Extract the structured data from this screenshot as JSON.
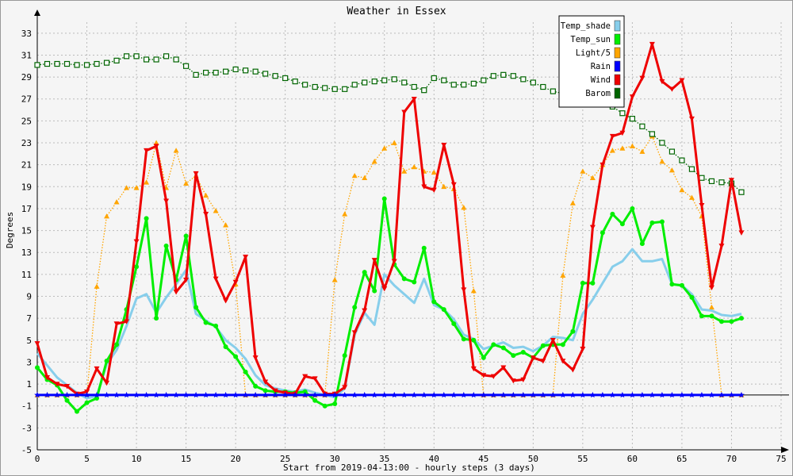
{
  "chart_data": {
    "type": "line",
    "title": "Weather in Essex",
    "xlabel": "Start from 2019-04-13:00 - hourly steps (3 days)",
    "ylabel": "Degrees",
    "xlim": [
      0,
      75
    ],
    "ylim": [
      -5,
      34
    ],
    "xticks": [
      0,
      5,
      10,
      15,
      20,
      25,
      30,
      35,
      40,
      45,
      50,
      55,
      60,
      65,
      70,
      75
    ],
    "yticks": [
      -5,
      -3,
      -1,
      1,
      3,
      5,
      7,
      9,
      11,
      13,
      15,
      17,
      19,
      21,
      23,
      25,
      27,
      29,
      31,
      33
    ],
    "grid": true,
    "legend_position": "top-right",
    "x": [
      0,
      1,
      2,
      3,
      4,
      5,
      6,
      7,
      8,
      9,
      10,
      11,
      12,
      13,
      14,
      15,
      16,
      17,
      18,
      19,
      20,
      21,
      22,
      23,
      24,
      25,
      26,
      27,
      28,
      29,
      30,
      31,
      32,
      33,
      34,
      35,
      36,
      37,
      38,
      39,
      40,
      41,
      42,
      43,
      44,
      45,
      46,
      47,
      48,
      49,
      50,
      51,
      52,
      53,
      54,
      55,
      56,
      57,
      58,
      59,
      60,
      61,
      62,
      63,
      64,
      65,
      66,
      67,
      68,
      69,
      70,
      71
    ],
    "series": [
      {
        "name": "Temp_shade",
        "color": "#87ceeb",
        "style": "solid",
        "marker": "none",
        "values": [
          3.8,
          2.7,
          1.6,
          0.9,
          0.2,
          -0.3,
          -0.1,
          2.8,
          4.1,
          6.3,
          8.8,
          9.2,
          7.5,
          8.9,
          10.1,
          11.4,
          7.4,
          6.8,
          6.2,
          5.0,
          4.3,
          3.3,
          1.8,
          0.9,
          0.6,
          0.4,
          0.3,
          0.5,
          0.2,
          0.0,
          -0.2,
          0.6,
          5.5,
          7.5,
          6.4,
          11.0,
          10.0,
          9.2,
          8.4,
          10.6,
          8.2,
          7.8,
          6.9,
          5.5,
          5.1,
          4.2,
          4.5,
          4.8,
          4.3,
          4.4,
          4.0,
          4.5,
          5.3,
          5.2,
          5.0,
          7.4,
          8.7,
          10.2,
          11.7,
          12.2,
          13.3,
          12.2,
          12.2,
          12.4,
          10.1,
          10.0,
          9.2,
          7.8,
          7.7,
          7.3,
          7.2,
          7.4
        ]
      },
      {
        "name": "Temp_sun",
        "color": "#00ee00",
        "style": "solid",
        "marker": "circle",
        "values": [
          2.5,
          1.4,
          0.9,
          -0.5,
          -1.5,
          -0.7,
          -0.3,
          3.1,
          4.6,
          7.8,
          11.7,
          16.1,
          7.0,
          13.6,
          10.5,
          14.5,
          8.0,
          6.6,
          6.3,
          4.4,
          3.5,
          2.1,
          0.8,
          0.4,
          0.3,
          0.3,
          0.2,
          0.3,
          -0.5,
          -1.0,
          -0.8,
          3.6,
          8.0,
          11.2,
          9.5,
          17.9,
          11.9,
          10.6,
          10.3,
          13.4,
          8.5,
          7.8,
          6.5,
          5.1,
          5.0,
          3.4,
          4.6,
          4.3,
          3.6,
          3.9,
          3.4,
          4.5,
          4.6,
          4.6,
          5.8,
          10.2,
          10.2,
          14.8,
          16.5,
          15.6,
          17.0,
          13.8,
          15.7,
          15.8,
          10.1,
          10.0,
          8.9,
          7.2,
          7.2,
          6.7,
          6.7,
          7.0
        ]
      },
      {
        "name": "Light/5",
        "color": "#ffa500",
        "style": "dotted",
        "marker": "triangle-up",
        "values": [
          0,
          0,
          0,
          0,
          0,
          0,
          9.9,
          16.3,
          17.6,
          18.9,
          18.9,
          19.4,
          23.0,
          18.9,
          22.3,
          19.3,
          20.0,
          18.2,
          16.8,
          15.5,
          10.1,
          0,
          0,
          0,
          0,
          0,
          0,
          0,
          0,
          0,
          10.5,
          16.5,
          20.0,
          19.8,
          21.3,
          22.5,
          23.0,
          20.4,
          20.8,
          20.4,
          20.3,
          19.0,
          18.8,
          17.1,
          9.5,
          0,
          0,
          0,
          0,
          0,
          0,
          0,
          0,
          10.9,
          17.5,
          20.4,
          19.8,
          21.0,
          22.3,
          22.5,
          22.7,
          22.2,
          23.6,
          21.3,
          20.5,
          18.7,
          18.0,
          16.3,
          8.0,
          0,
          0,
          0
        ]
      },
      {
        "name": "Rain",
        "color": "#0000ff",
        "style": "solid",
        "marker": "star",
        "values": [
          0,
          0,
          0,
          0,
          0,
          0,
          0,
          0,
          0,
          0,
          0,
          0,
          0,
          0,
          0,
          0,
          0,
          0,
          0,
          0,
          0,
          0,
          0,
          0,
          0,
          0,
          0,
          0,
          0,
          0,
          0,
          0,
          0,
          0,
          0,
          0,
          0,
          0,
          0,
          0,
          0,
          0,
          0,
          0,
          0,
          0,
          0,
          0,
          0,
          0,
          0,
          0,
          0,
          0,
          0,
          0,
          0,
          0,
          0,
          0,
          0,
          0,
          0,
          0,
          0,
          0,
          0,
          0,
          0,
          0,
          0,
          0
        ]
      },
      {
        "name": "Wind",
        "color": "#ee0000",
        "style": "solid",
        "marker": "triangle-down",
        "values": [
          4.7,
          1.6,
          1.0,
          0.8,
          0.1,
          0.3,
          2.4,
          1.1,
          6.5,
          6.7,
          14.0,
          22.3,
          22.7,
          17.7,
          9.4,
          10.5,
          20.2,
          16.5,
          10.6,
          8.6,
          10.3,
          12.6,
          3.4,
          1.2,
          0.4,
          0.2,
          0.1,
          1.7,
          1.5,
          0.1,
          0.1,
          0.7,
          5.7,
          7.7,
          12.3,
          9.7,
          12.2,
          25.8,
          27.0,
          19.0,
          18.7,
          22.8,
          19.2,
          9.6,
          2.4,
          1.8,
          1.7,
          2.5,
          1.3,
          1.4,
          3.4,
          3.1,
          5.0,
          3.1,
          2.3,
          4.2,
          15.3,
          21.0,
          23.6,
          23.9,
          27.2,
          28.9,
          32.0,
          28.6,
          27.9,
          28.7,
          25.2,
          17.3,
          9.8,
          13.6,
          19.6,
          14.8
        ]
      },
      {
        "name": "Barom",
        "color": "#006400",
        "style": "dotted",
        "marker": "square",
        "values": [
          30.1,
          30.2,
          30.2,
          30.2,
          30.1,
          30.1,
          30.2,
          30.3,
          30.5,
          30.9,
          30.9,
          30.6,
          30.6,
          30.9,
          30.6,
          30.0,
          29.2,
          29.4,
          29.4,
          29.5,
          29.7,
          29.6,
          29.5,
          29.3,
          29.1,
          28.9,
          28.6,
          28.3,
          28.1,
          28.0,
          27.9,
          27.9,
          28.3,
          28.5,
          28.6,
          28.7,
          28.8,
          28.5,
          28.1,
          27.8,
          28.9,
          28.7,
          28.3,
          28.3,
          28.4,
          28.7,
          29.1,
          29.2,
          29.1,
          28.8,
          28.5,
          28.1,
          27.7,
          27.5,
          27.2,
          27.1,
          26.9,
          26.6,
          26.3,
          25.7,
          25.2,
          24.5,
          23.8,
          23.0,
          22.2,
          21.4,
          20.6,
          19.8,
          19.5,
          19.4,
          19.3,
          18.5
        ]
      }
    ]
  }
}
